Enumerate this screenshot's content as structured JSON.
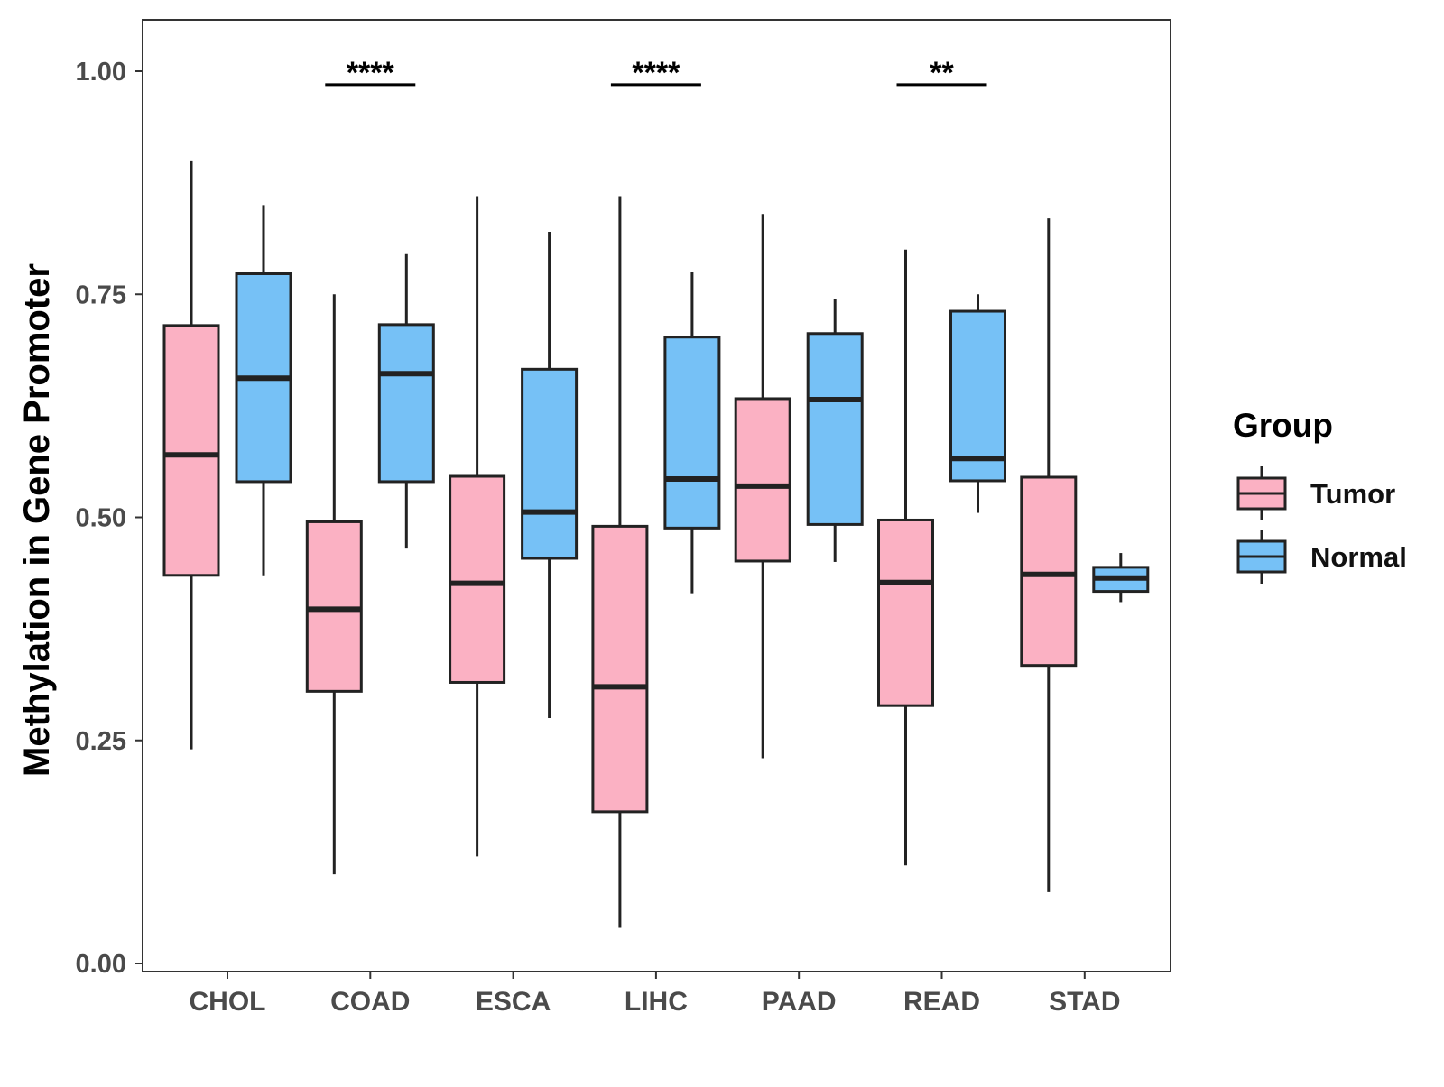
{
  "chart_data": {
    "type": "boxplot",
    "title": "",
    "xlabel": "",
    "ylabel": "Methylation in Gene Promoter",
    "ylim": [
      0.0,
      1.0
    ],
    "yticks": [
      0.0,
      0.25,
      0.5,
      0.75,
      1.0
    ],
    "ytick_labels": [
      "0.00",
      "0.25",
      "0.50",
      "0.75",
      "1.00"
    ],
    "grid": false,
    "categories": [
      "CHOL",
      "COAD",
      "ESCA",
      "LIHC",
      "PAAD",
      "READ",
      "STAD"
    ],
    "legend": {
      "title": "Group",
      "position": "right",
      "entries": [
        {
          "name": "Tumor",
          "color": "#FBB1C3"
        },
        {
          "name": "Normal",
          "color": "#76C1F6"
        }
      ]
    },
    "series": [
      {
        "name": "Tumor",
        "color": "#FBB1C3",
        "boxes": [
          {
            "category": "CHOL",
            "min": 0.24,
            "q1": 0.435,
            "median": 0.57,
            "q3": 0.715,
            "max": 0.9
          },
          {
            "category": "COAD",
            "min": 0.1,
            "q1": 0.305,
            "median": 0.397,
            "q3": 0.495,
            "max": 0.75
          },
          {
            "category": "ESCA",
            "min": 0.12,
            "q1": 0.315,
            "median": 0.426,
            "q3": 0.546,
            "max": 0.86
          },
          {
            "category": "LIHC",
            "min": 0.04,
            "q1": 0.17,
            "median": 0.31,
            "q3": 0.49,
            "max": 0.86
          },
          {
            "category": "PAAD",
            "min": 0.23,
            "q1": 0.451,
            "median": 0.535,
            "q3": 0.633,
            "max": 0.84
          },
          {
            "category": "READ",
            "min": 0.11,
            "q1": 0.289,
            "median": 0.427,
            "q3": 0.497,
            "max": 0.8
          },
          {
            "category": "STAD",
            "min": 0.08,
            "q1": 0.334,
            "median": 0.436,
            "q3": 0.545,
            "max": 0.835
          }
        ]
      },
      {
        "name": "Normal",
        "color": "#76C1F6",
        "boxes": [
          {
            "category": "CHOL",
            "min": 0.435,
            "q1": 0.54,
            "median": 0.656,
            "q3": 0.773,
            "max": 0.85
          },
          {
            "category": "COAD",
            "min": 0.465,
            "q1": 0.54,
            "median": 0.661,
            "q3": 0.716,
            "max": 0.795
          },
          {
            "category": "ESCA",
            "min": 0.275,
            "q1": 0.454,
            "median": 0.506,
            "q3": 0.666,
            "max": 0.82
          },
          {
            "category": "LIHC",
            "min": 0.415,
            "q1": 0.488,
            "median": 0.543,
            "q3": 0.702,
            "max": 0.775
          },
          {
            "category": "PAAD",
            "min": 0.45,
            "q1": 0.492,
            "median": 0.632,
            "q3": 0.706,
            "max": 0.745
          },
          {
            "category": "READ",
            "min": 0.505,
            "q1": 0.541,
            "median": 0.566,
            "q3": 0.731,
            "max": 0.75
          },
          {
            "category": "STAD",
            "min": 0.405,
            "q1": 0.417,
            "median": 0.432,
            "q3": 0.444,
            "max": 0.46
          }
        ]
      }
    ],
    "annotations": [
      {
        "category": "COAD",
        "label": "****",
        "y": 0.985
      },
      {
        "category": "LIHC",
        "label": "****",
        "y": 0.985
      },
      {
        "category": "READ",
        "label": "**",
        "y": 0.985
      }
    ]
  }
}
